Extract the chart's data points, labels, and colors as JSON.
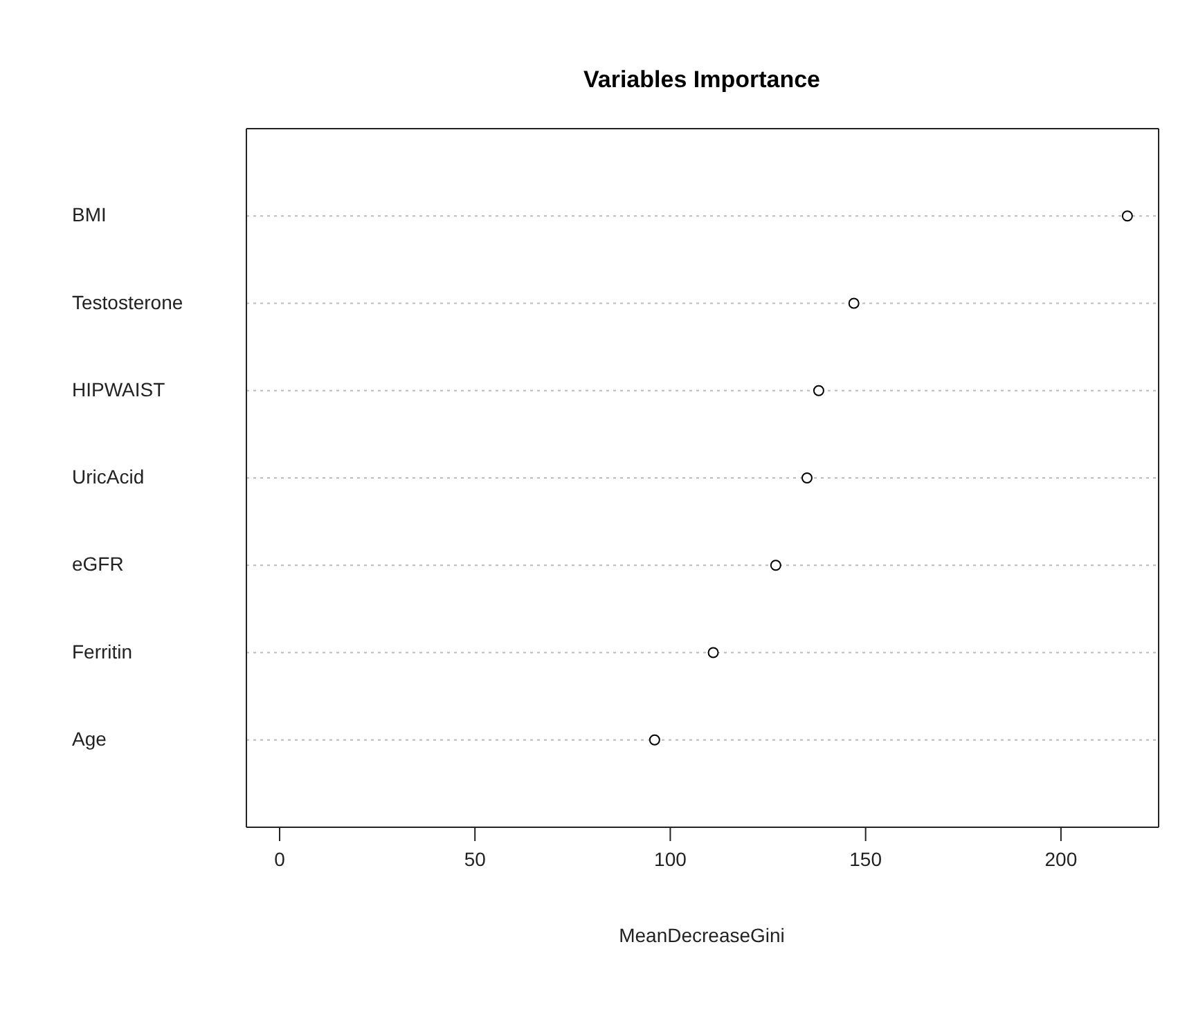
{
  "chart_data": {
    "type": "scatter",
    "orientation": "horizontal",
    "title": "Variables Importance",
    "xlabel": "MeanDecreaseGini",
    "categories": [
      "BMI",
      "Testosterone",
      "HIPWAIST",
      "UricAcid",
      "eGFR",
      "Ferritin",
      "Age"
    ],
    "series": [
      {
        "color": "#000000",
        "values": [
          217,
          147,
          138,
          135,
          127,
          111,
          96
        ]
      }
    ],
    "xlim": [
      -8.5,
      225
    ],
    "xticks": [
      0,
      50,
      100,
      150,
      200
    ],
    "grid": "y",
    "marker": "circle"
  }
}
